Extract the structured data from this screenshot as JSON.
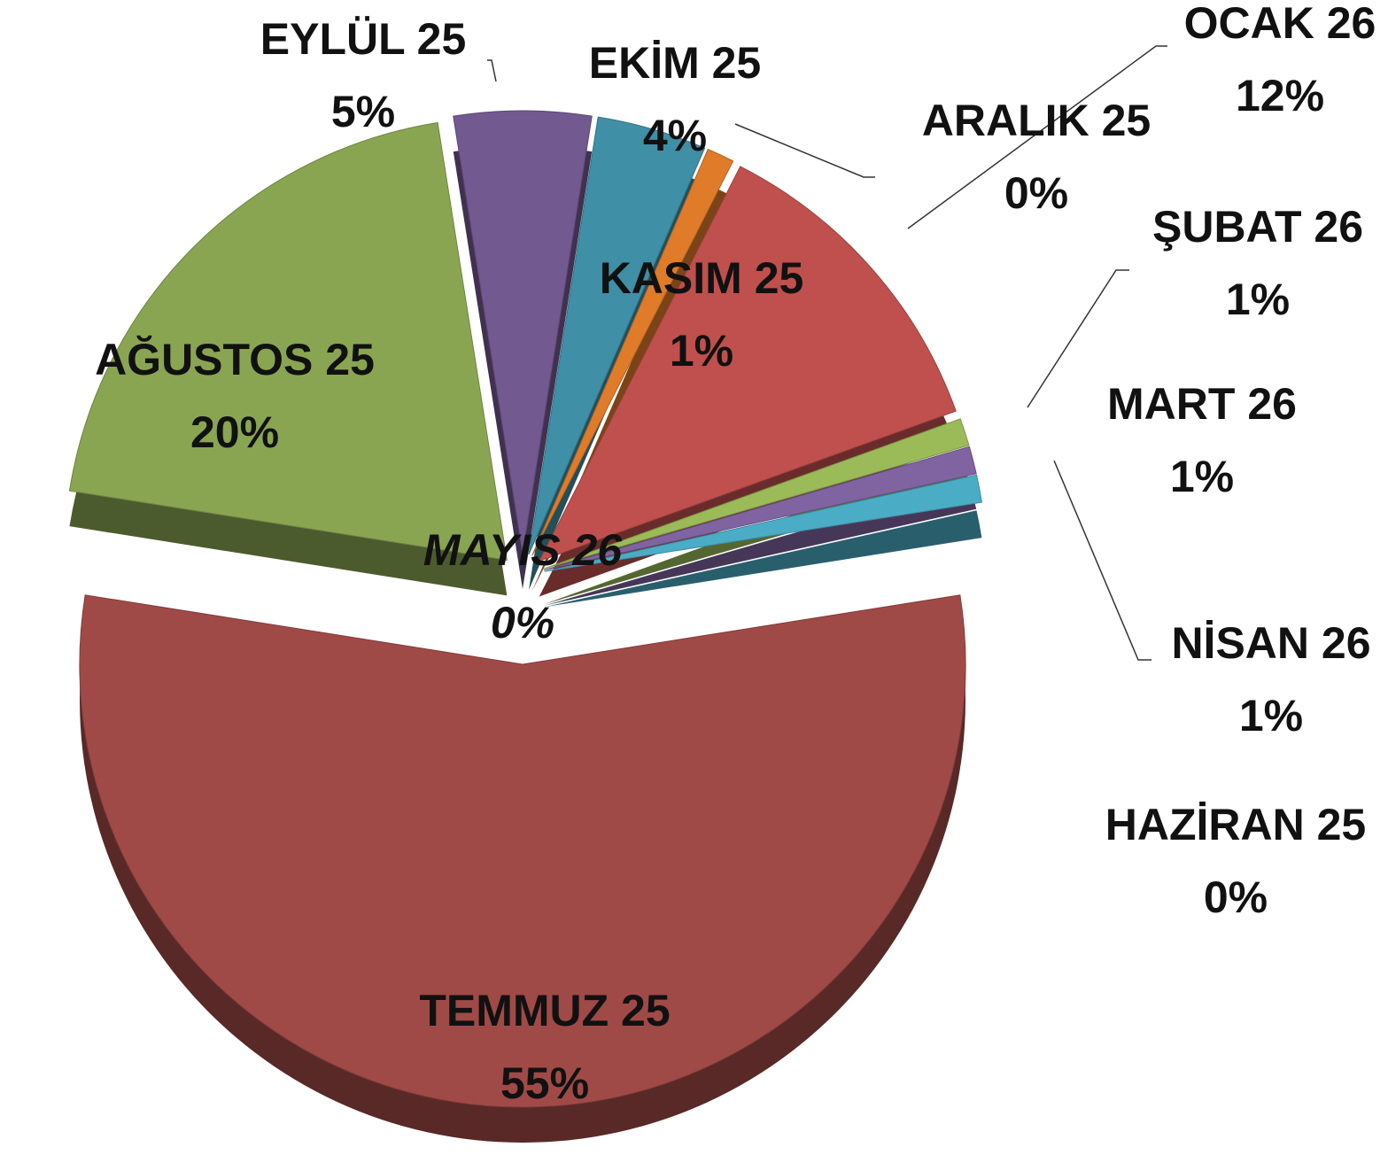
{
  "chart_data": {
    "type": "pie",
    "categories": [
      "HAZİRAN 25",
      "TEMMUZ 25",
      "AĞUSTOS 25",
      "EYLÜL 25",
      "EKİM 25",
      "KASIM 25",
      "ARALIK 25",
      "OCAK 26",
      "ŞUBAT 26",
      "MART 26",
      "NİSAN 26",
      "MAYIS 26"
    ],
    "values": [
      0,
      55,
      20,
      5,
      4,
      1,
      0,
      12,
      1,
      1,
      1,
      0
    ],
    "value_labels": [
      "0%",
      "55%",
      "20%",
      "5%",
      "4%",
      "1%",
      "0%",
      "12%",
      "1%",
      "1%",
      "1%",
      "0%"
    ],
    "colors": [
      "#f79646",
      "#a04a47",
      "#8aa552",
      "#72598f",
      "#3f8fa6",
      "#e07b2a",
      "#4f81bd",
      "#c0504d",
      "#9bbb59",
      "#8064a2",
      "#4bacc6",
      "#2c4d75"
    ]
  }
}
